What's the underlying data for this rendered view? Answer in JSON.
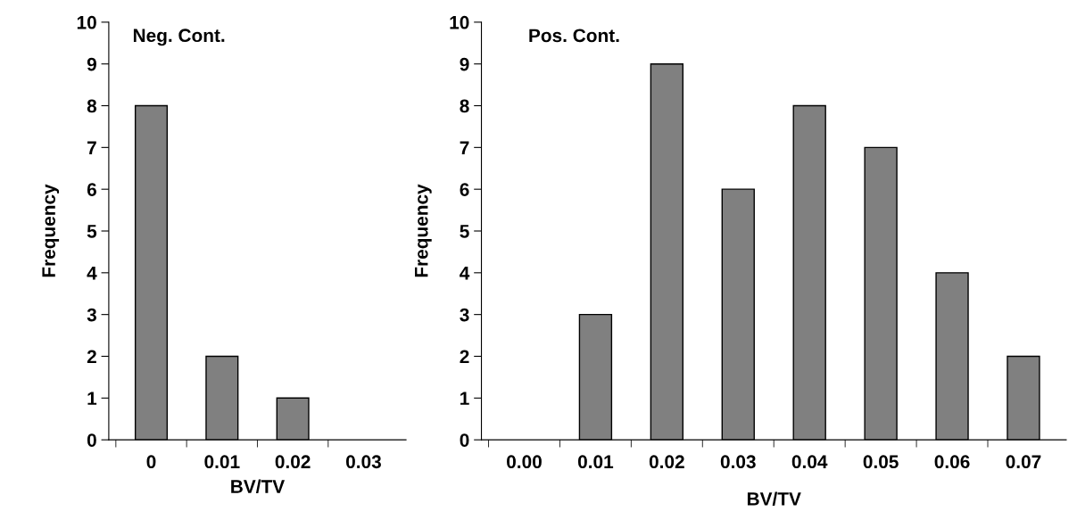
{
  "chart_data": [
    {
      "type": "bar",
      "title": "Neg. Cont.",
      "xlabel": "BV/TV",
      "ylabel": "Frequency",
      "categories": [
        "0",
        "0.01",
        "0.02",
        "0.03"
      ],
      "values": [
        8,
        2,
        1,
        0
      ],
      "color": "#808080",
      "ylim": [
        0,
        10
      ],
      "yticks": [
        0,
        1,
        2,
        3,
        4,
        5,
        6,
        7,
        8,
        9,
        10
      ],
      "grid": false,
      "legend": false
    },
    {
      "type": "bar",
      "title": "Pos. Cont.",
      "xlabel": "BV/TV",
      "ylabel": "Frequency",
      "categories": [
        "0.00",
        "0.01",
        "0.02",
        "0.03",
        "0.04",
        "0.05",
        "0.06",
        "0.07"
      ],
      "values": [
        0,
        3,
        9,
        6,
        8,
        7,
        4,
        2
      ],
      "color": "#808080",
      "ylim": [
        0,
        10
      ],
      "yticks": [
        0,
        1,
        2,
        3,
        4,
        5,
        6,
        7,
        8,
        9,
        10
      ],
      "grid": false,
      "legend": false
    }
  ]
}
